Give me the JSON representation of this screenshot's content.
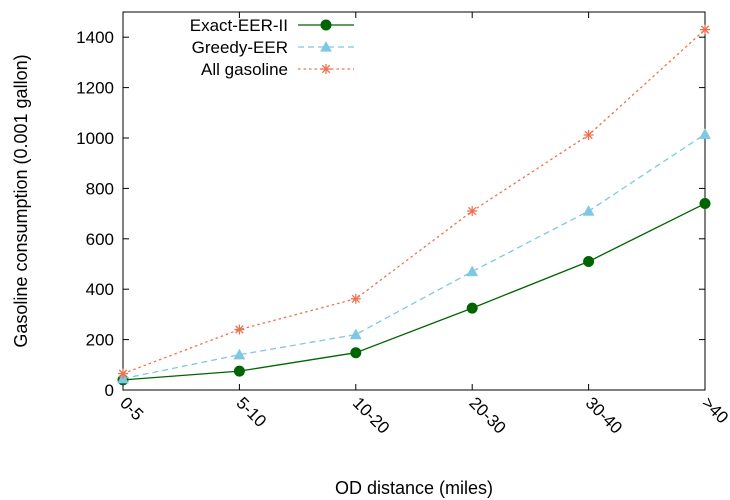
{
  "chart_data": {
    "type": "line",
    "xlabel": "OD distance (miles)",
    "ylabel": "Gasoline consumption (0.001 gallon)",
    "categories": [
      "0-5",
      "5-10",
      "10-20",
      "20-30",
      "30-40",
      ">40"
    ],
    "ylim": [
      0,
      1500
    ],
    "yticks": [
      0,
      200,
      400,
      600,
      800,
      1000,
      1200,
      1400
    ],
    "grid": false,
    "legend_position": "top-left",
    "series": [
      {
        "name": "Exact-EER-II",
        "color": "#006400",
        "marker": "filled-circle",
        "line": "solid",
        "values": [
          40,
          75,
          148,
          325,
          510,
          740
        ]
      },
      {
        "name": "Greedy-EER",
        "color": "#7ec8e3",
        "marker": "filled-triangle",
        "line": "dashed",
        "values": [
          45,
          140,
          220,
          470,
          710,
          1015
        ]
      },
      {
        "name": "All gasoline",
        "color": "#f07050",
        "marker": "star",
        "line": "dotted",
        "values": [
          65,
          240,
          362,
          710,
          1012,
          1430
        ]
      }
    ]
  }
}
